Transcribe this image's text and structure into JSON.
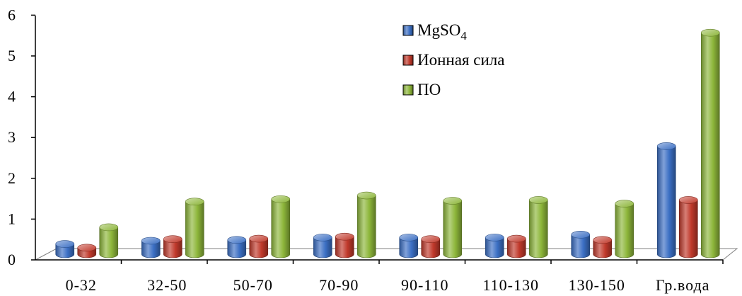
{
  "chart_data": {
    "type": "bar",
    "style": "3d-cylinder",
    "categories": [
      "0-32",
      "32-50",
      "50-70",
      "70-90",
      "90-110",
      "110-130",
      "130-150",
      "Гр.вода"
    ],
    "series": [
      {
        "name": "MgSO",
        "name_subscript": "4",
        "color": "#3b6fc4",
        "values": [
          0.25,
          0.33,
          0.35,
          0.41,
          0.41,
          0.41,
          0.48,
          2.65
        ]
      },
      {
        "name": "Ионная сила",
        "color": "#c0392b",
        "values": [
          0.16,
          0.37,
          0.38,
          0.43,
          0.37,
          0.38,
          0.35,
          1.33
        ]
      },
      {
        "name": "ПО",
        "color": "#8db63a",
        "values": [
          0.66,
          1.29,
          1.35,
          1.44,
          1.31,
          1.33,
          1.24,
          5.43
        ]
      }
    ],
    "ylim": [
      0,
      6
    ],
    "yticks": [
      "0",
      "1",
      "2",
      "3",
      "4",
      "5",
      "6"
    ],
    "grid": false,
    "legend_position": "top-center",
    "title": "",
    "xlabel": "",
    "ylabel": ""
  }
}
